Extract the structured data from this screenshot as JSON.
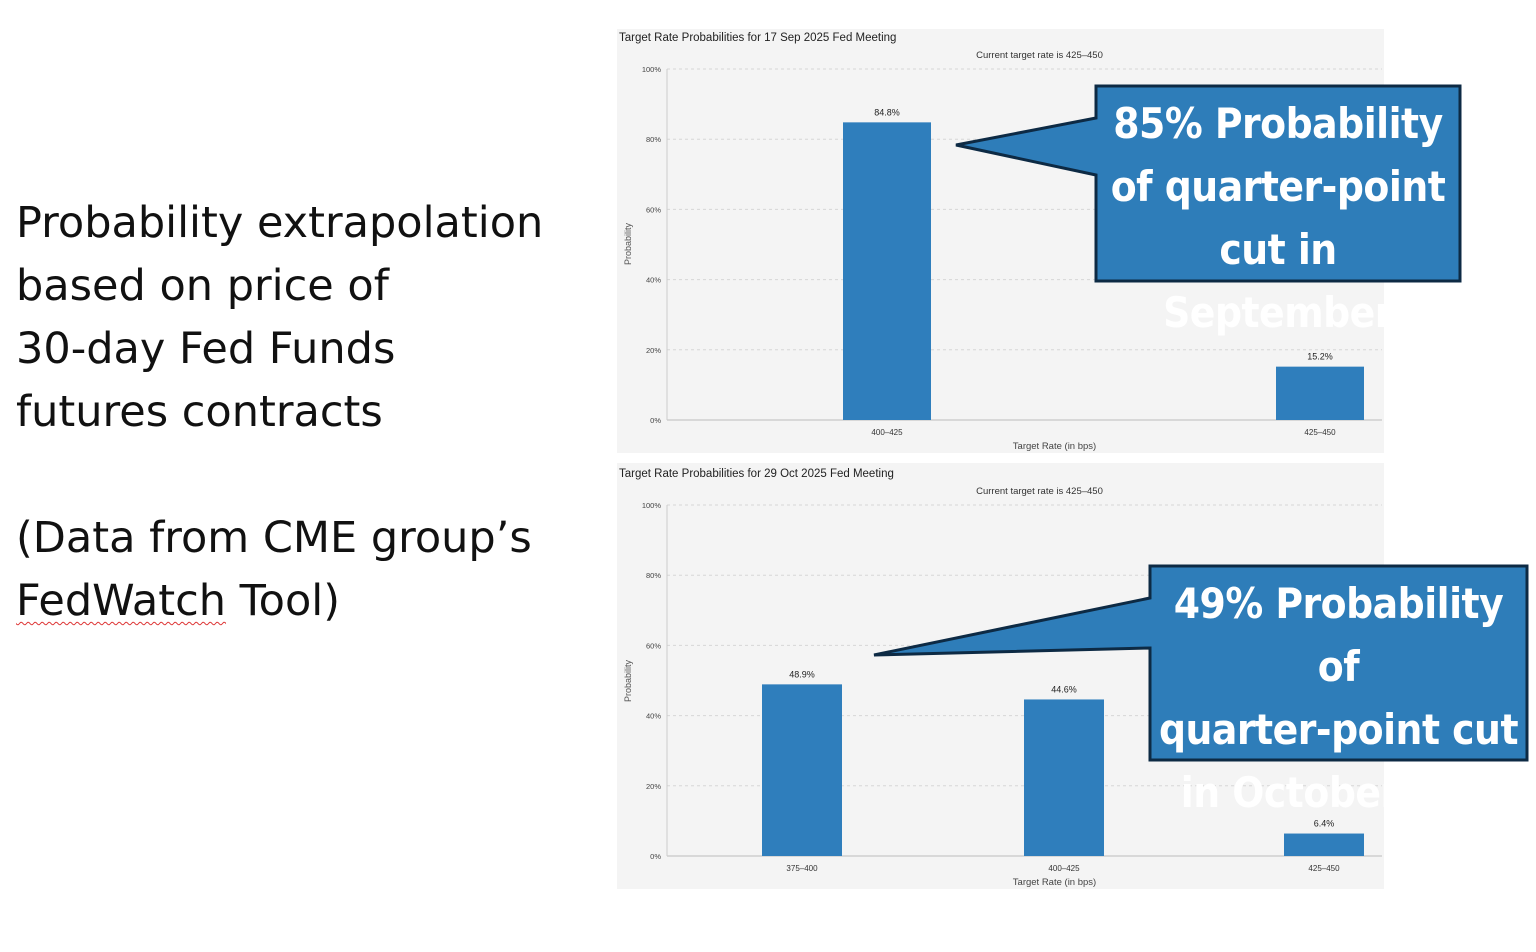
{
  "intro": {
    "line1": "Probability extrapolation",
    "line2": "based on price of",
    "line3": "30-day Fed Funds",
    "line4": "futures contracts",
    "note_line1": "(Data from CME group’s",
    "note_word": "FedWatch",
    "note_rest": " Tool)"
  },
  "colors": {
    "bar": "#2f7ebc",
    "callout_fill": "#2e7db9",
    "callout_border": "#0d2a44",
    "panel_bg": "#f4f4f4"
  },
  "chart_data": [
    {
      "type": "bar",
      "title": "Target Rate Probabilities for 17 Sep 2025 Fed Meeting",
      "subtitle": "Current target rate is 425–450",
      "xlabel": "Target Rate (in bps)",
      "ylabel": "Probability",
      "ylim": [
        0,
        100
      ],
      "yticks": [
        "0%",
        "20%",
        "40%",
        "60%",
        "80%",
        "100%"
      ],
      "categories": [
        "400–425",
        "425–450"
      ],
      "values": [
        84.8,
        15.2
      ],
      "value_labels": [
        "84.8%",
        "15.2%"
      ],
      "grid": true
    },
    {
      "type": "bar",
      "title": "Target Rate Probabilities for 29 Oct 2025 Fed Meeting",
      "subtitle": "Current target rate is 425–450",
      "xlabel": "Target Rate (in bps)",
      "ylabel": "Probability",
      "ylim": [
        0,
        100
      ],
      "yticks": [
        "0%",
        "20%",
        "40%",
        "60%",
        "80%",
        "100%"
      ],
      "categories": [
        "375–400",
        "400–425",
        "425–450"
      ],
      "values": [
        48.9,
        44.6,
        6.4
      ],
      "value_labels": [
        "48.9%",
        "44.6%",
        "6.4%"
      ],
      "grid": true
    }
  ],
  "callouts": [
    {
      "lines": [
        "85% Probability",
        "of quarter-point",
        "cut in September"
      ]
    },
    {
      "lines": [
        "49% Probability of",
        "quarter-point cut",
        "in October also"
      ]
    }
  ]
}
